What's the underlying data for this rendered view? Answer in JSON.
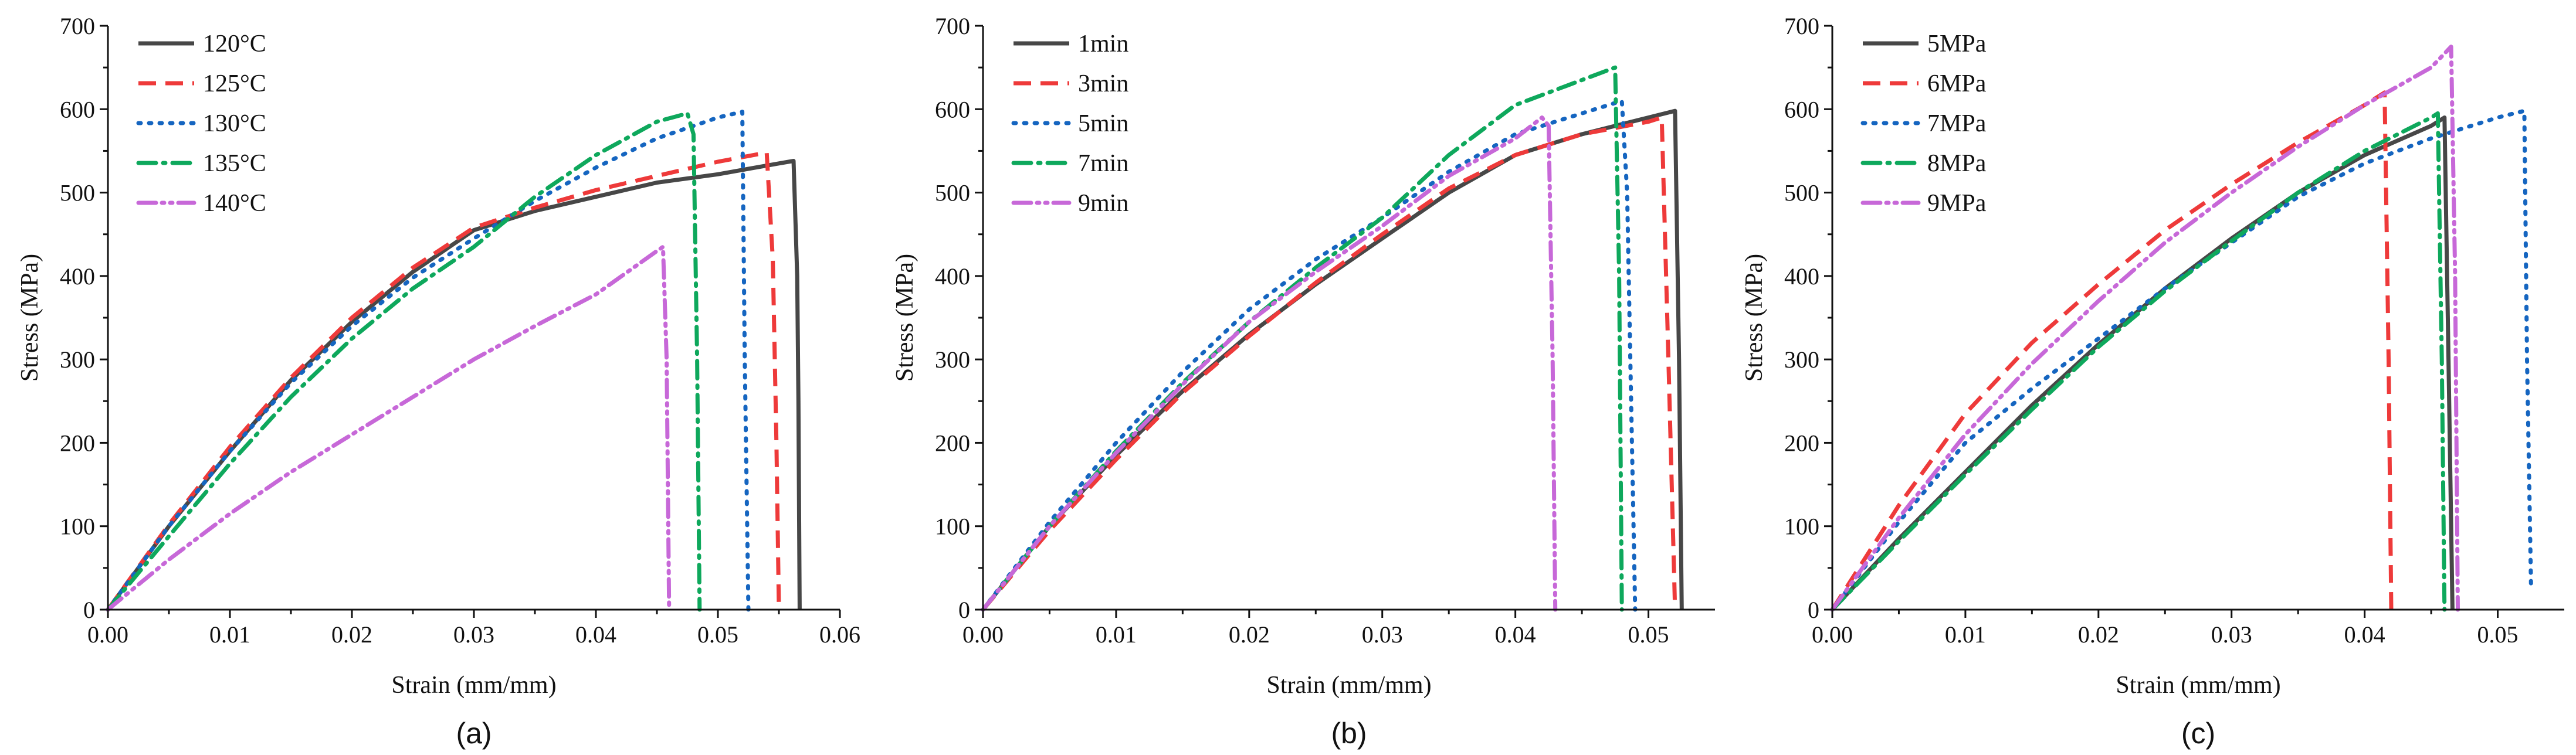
{
  "colors": {
    "s1": "#474747",
    "s2": "#ee3a3a",
    "s3": "#1565c0",
    "s4": "#0ea85c",
    "s5": "#c768d8"
  },
  "chart_data": [
    {
      "type": "line",
      "panel_label": "(a)",
      "xlabel": "Strain (mm/mm)",
      "ylabel": "Stress (MPa)",
      "xlim": [
        0,
        0.06
      ],
      "ylim": [
        0,
        700
      ],
      "xticks": [
        0,
        0.01,
        0.02,
        0.03,
        0.04,
        0.05,
        0.06
      ],
      "xtick_labels": [
        "0.00",
        "0.01",
        "0.02",
        "0.03",
        "0.04",
        "0.05",
        "0.06"
      ],
      "yticks": [
        0,
        100,
        200,
        300,
        400,
        500,
        600,
        700
      ],
      "ytick_labels": [
        "0",
        "100",
        "200",
        "300",
        "400",
        "500",
        "600",
        "700"
      ],
      "legend_position": "top-left",
      "series": [
        {
          "name": "120°C",
          "style": "solid",
          "color_key": "s1",
          "x": [
            0,
            0.005,
            0.01,
            0.015,
            0.02,
            0.025,
            0.03,
            0.035,
            0.04,
            0.045,
            0.05,
            0.055,
            0.0562,
            0.0565,
            0.0566,
            0.0567
          ],
          "y": [
            0,
            100,
            190,
            275,
            345,
            405,
            455,
            478,
            495,
            512,
            522,
            535,
            538,
            400,
            250,
            0
          ]
        },
        {
          "name": "125°C",
          "style": "dash",
          "color_key": "s2",
          "x": [
            0,
            0.005,
            0.01,
            0.015,
            0.02,
            0.025,
            0.03,
            0.035,
            0.04,
            0.045,
            0.05,
            0.054,
            0.0545,
            0.0548,
            0.055
          ],
          "y": [
            0,
            102,
            195,
            278,
            350,
            410,
            458,
            482,
            503,
            520,
            537,
            548,
            420,
            200,
            0
          ]
        },
        {
          "name": "130°C",
          "style": "dot",
          "color_key": "s3",
          "x": [
            0,
            0.005,
            0.01,
            0.015,
            0.02,
            0.025,
            0.03,
            0.035,
            0.04,
            0.045,
            0.05,
            0.052,
            0.0522,
            0.0525
          ],
          "y": [
            0,
            100,
            190,
            272,
            340,
            398,
            445,
            490,
            530,
            565,
            590,
            597,
            300,
            0
          ]
        },
        {
          "name": "135°C",
          "style": "dashdot",
          "color_key": "s4",
          "x": [
            0,
            0.005,
            0.01,
            0.015,
            0.02,
            0.025,
            0.03,
            0.035,
            0.04,
            0.045,
            0.0475,
            0.048,
            0.0483,
            0.0485
          ],
          "y": [
            0,
            88,
            175,
            255,
            325,
            385,
            435,
            495,
            545,
            585,
            595,
            570,
            300,
            0
          ]
        },
        {
          "name": "140°C",
          "style": "dashdotdot",
          "color_key": "s5",
          "x": [
            0,
            0.005,
            0.01,
            0.015,
            0.02,
            0.025,
            0.03,
            0.035,
            0.04,
            0.045,
            0.0455,
            0.0458,
            0.046
          ],
          "y": [
            0,
            60,
            115,
            165,
            210,
            255,
            300,
            340,
            378,
            430,
            435,
            300,
            0
          ]
        }
      ]
    },
    {
      "type": "line",
      "panel_label": "(b)",
      "xlabel": "Strain (mm/mm)",
      "ylabel": "Stress (MPa)",
      "xlim": [
        0,
        0.055
      ],
      "ylim": [
        0,
        700
      ],
      "xticks": [
        0,
        0.01,
        0.02,
        0.03,
        0.04,
        0.05
      ],
      "xtick_labels": [
        "0.00",
        "0.01",
        "0.02",
        "0.03",
        "0.04",
        "0.05"
      ],
      "yticks": [
        0,
        100,
        200,
        300,
        400,
        500,
        600,
        700
      ],
      "ytick_labels": [
        "0",
        "100",
        "200",
        "300",
        "400",
        "500",
        "600",
        "700"
      ],
      "legend_position": "top-left",
      "series": [
        {
          "name": "1min",
          "style": "solid",
          "color_key": "s1",
          "x": [
            0,
            0.005,
            0.01,
            0.015,
            0.02,
            0.025,
            0.03,
            0.035,
            0.04,
            0.045,
            0.05,
            0.052,
            0.0523,
            0.0525
          ],
          "y": [
            0,
            100,
            185,
            262,
            330,
            390,
            445,
            500,
            545,
            570,
            590,
            598,
            300,
            0
          ]
        },
        {
          "name": "3min",
          "style": "dash",
          "color_key": "s2",
          "x": [
            0,
            0.005,
            0.01,
            0.015,
            0.02,
            0.025,
            0.03,
            0.035,
            0.04,
            0.045,
            0.05,
            0.051,
            0.0515,
            0.052
          ],
          "y": [
            0,
            95,
            180,
            260,
            328,
            392,
            450,
            505,
            545,
            570,
            585,
            590,
            300,
            0
          ]
        },
        {
          "name": "5min",
          "style": "dot",
          "color_key": "s3",
          "x": [
            0,
            0.005,
            0.01,
            0.015,
            0.02,
            0.025,
            0.03,
            0.035,
            0.04,
            0.045,
            0.048,
            0.0484,
            0.0487,
            0.049
          ],
          "y": [
            0,
            105,
            200,
            285,
            360,
            420,
            470,
            525,
            570,
            595,
            610,
            500,
            250,
            0
          ]
        },
        {
          "name": "7min",
          "style": "dashdot",
          "color_key": "s4",
          "x": [
            0,
            0.005,
            0.01,
            0.015,
            0.02,
            0.025,
            0.03,
            0.035,
            0.04,
            0.045,
            0.0475,
            0.0478,
            0.048
          ],
          "y": [
            0,
            100,
            190,
            272,
            345,
            410,
            470,
            545,
            605,
            635,
            650,
            400,
            0
          ]
        },
        {
          "name": "9min",
          "style": "dashdotdot",
          "color_key": "s5",
          "x": [
            0,
            0.005,
            0.01,
            0.015,
            0.02,
            0.025,
            0.03,
            0.035,
            0.04,
            0.042,
            0.0425,
            0.0428,
            0.043
          ],
          "y": [
            0,
            100,
            188,
            270,
            345,
            405,
            460,
            520,
            565,
            590,
            580,
            300,
            0
          ]
        }
      ]
    },
    {
      "type": "line",
      "panel_label": "(c)",
      "xlabel": "Strain (mm/mm)",
      "ylabel": "Stress (MPa)",
      "xlim": [
        0,
        0.055
      ],
      "ylim": [
        0,
        700
      ],
      "xticks": [
        0,
        0.01,
        0.02,
        0.03,
        0.04,
        0.05
      ],
      "xtick_labels": [
        "0.00",
        "0.01",
        "0.02",
        "0.03",
        "0.04",
        "0.05"
      ],
      "yticks": [
        0,
        100,
        200,
        300,
        400,
        500,
        600,
        700
      ],
      "ytick_labels": [
        "0",
        "100",
        "200",
        "300",
        "400",
        "500",
        "600",
        "700"
      ],
      "legend_position": "top-left",
      "series": [
        {
          "name": "5MPa",
          "style": "solid",
          "color_key": "s1",
          "x": [
            0,
            0.005,
            0.01,
            0.015,
            0.02,
            0.025,
            0.03,
            0.035,
            0.04,
            0.045,
            0.046,
            0.0463,
            0.0466
          ],
          "y": [
            0,
            85,
            165,
            245,
            318,
            385,
            445,
            500,
            545,
            580,
            590,
            300,
            0
          ]
        },
        {
          "name": "6MPa",
          "style": "dash",
          "color_key": "s2",
          "x": [
            0,
            0.005,
            0.01,
            0.015,
            0.02,
            0.025,
            0.03,
            0.035,
            0.04,
            0.0415,
            0.0418,
            0.042
          ],
          "y": [
            0,
            125,
            235,
            320,
            390,
            455,
            510,
            560,
            605,
            620,
            300,
            0
          ]
        },
        {
          "name": "7MPa",
          "style": "dot",
          "color_key": "s3",
          "x": [
            0,
            0.005,
            0.01,
            0.015,
            0.02,
            0.025,
            0.03,
            0.035,
            0.04,
            0.045,
            0.05,
            0.052,
            0.0522,
            0.0525
          ],
          "y": [
            0,
            105,
            200,
            265,
            325,
            385,
            440,
            495,
            535,
            565,
            590,
            598,
            300,
            30
          ]
        },
        {
          "name": "8MPa",
          "style": "dashdot",
          "color_key": "s4",
          "x": [
            0,
            0.005,
            0.01,
            0.015,
            0.02,
            0.025,
            0.03,
            0.035,
            0.04,
            0.045,
            0.0455,
            0.0458,
            0.046
          ],
          "y": [
            0,
            82,
            162,
            240,
            315,
            382,
            442,
            500,
            550,
            590,
            595,
            300,
            0
          ]
        },
        {
          "name": "9MPa",
          "style": "dashdotdot",
          "color_key": "s5",
          "x": [
            0,
            0.005,
            0.01,
            0.015,
            0.02,
            0.025,
            0.03,
            0.035,
            0.04,
            0.045,
            0.0465,
            0.0468,
            0.047
          ],
          "y": [
            0,
            110,
            210,
            295,
            370,
            440,
            500,
            555,
            605,
            650,
            675,
            400,
            0
          ]
        }
      ]
    }
  ]
}
